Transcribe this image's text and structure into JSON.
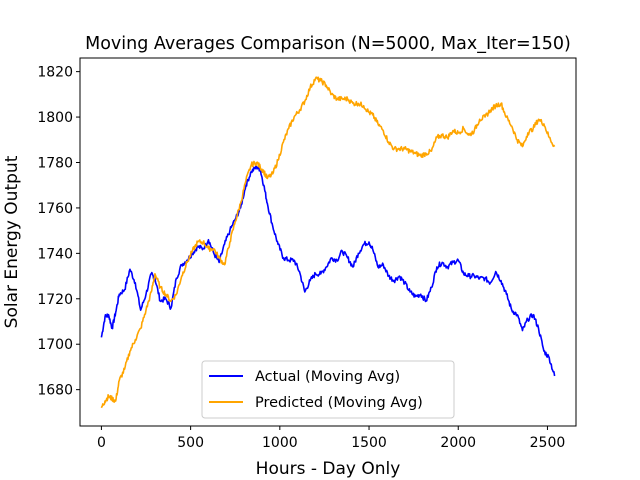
{
  "chart_data": {
    "type": "line",
    "title": "Moving Averages Comparison (N=5000, Max_Iter=150)",
    "xlabel": "Hours - Day Only",
    "ylabel": "Solar Energy Output",
    "xlim": [
      -120,
      2660
    ],
    "ylim": [
      1664,
      1826
    ],
    "xticks": [
      0,
      500,
      1000,
      1500,
      2000,
      2500
    ],
    "yticks": [
      1680,
      1700,
      1720,
      1740,
      1760,
      1780,
      1800,
      1820
    ],
    "grid": false,
    "legend_position": "lower-center",
    "series": [
      {
        "name": "Actual (Moving Avg)",
        "color": "#0000ff",
        "x": [
          0,
          20,
          40,
          60,
          80,
          100,
          130,
          160,
          190,
          220,
          250,
          280,
          300,
          330,
          360,
          390,
          420,
          450,
          480,
          510,
          540,
          570,
          600,
          630,
          660,
          690,
          720,
          750,
          780,
          810,
          840,
          870,
          890,
          910,
          930,
          960,
          990,
          1020,
          1050,
          1080,
          1110,
          1140,
          1170,
          1200,
          1230,
          1260,
          1290,
          1320,
          1350,
          1380,
          1410,
          1440,
          1470,
          1500,
          1520,
          1550,
          1580,
          1610,
          1640,
          1670,
          1700,
          1730,
          1760,
          1790,
          1820,
          1850,
          1880,
          1910,
          1940,
          1970,
          2000,
          2030,
          2060,
          2090,
          2120,
          2150,
          2180,
          2210,
          2240,
          2270,
          2300,
          2330,
          2360,
          2390,
          2420,
          2450,
          2480,
          2510,
          2540
        ],
        "y": [
          1703,
          1712,
          1713,
          1707,
          1714,
          1722,
          1724,
          1733,
          1727,
          1715,
          1722,
          1731,
          1729,
          1719,
          1720,
          1716,
          1729,
          1735,
          1737,
          1740,
          1743,
          1742,
          1746,
          1740,
          1736,
          1744,
          1750,
          1755,
          1760,
          1770,
          1776,
          1778,
          1777,
          1770,
          1762,
          1752,
          1744,
          1738,
          1737,
          1737,
          1732,
          1723,
          1728,
          1731,
          1731,
          1734,
          1738,
          1737,
          1741,
          1738,
          1734,
          1740,
          1744,
          1745,
          1742,
          1734,
          1735,
          1730,
          1728,
          1730,
          1727,
          1723,
          1721,
          1722,
          1719,
          1725,
          1734,
          1736,
          1734,
          1736,
          1737,
          1731,
          1730,
          1730,
          1729,
          1729,
          1727,
          1732,
          1728,
          1722,
          1715,
          1713,
          1706,
          1711,
          1713,
          1707,
          1697,
          1694,
          1686
        ]
      },
      {
        "name": "Predicted (Moving Avg)",
        "color": "#ffa500",
        "x": [
          0,
          20,
          40,
          60,
          80,
          100,
          130,
          160,
          190,
          220,
          250,
          280,
          300,
          330,
          360,
          390,
          420,
          450,
          480,
          510,
          540,
          570,
          600,
          630,
          660,
          690,
          720,
          750,
          780,
          810,
          840,
          870,
          890,
          910,
          930,
          960,
          990,
          1020,
          1050,
          1080,
          1110,
          1140,
          1170,
          1200,
          1230,
          1260,
          1290,
          1320,
          1350,
          1380,
          1410,
          1440,
          1470,
          1500,
          1520,
          1550,
          1580,
          1610,
          1640,
          1670,
          1700,
          1730,
          1760,
          1790,
          1820,
          1850,
          1880,
          1910,
          1940,
          1970,
          2000,
          2030,
          2060,
          2090,
          2120,
          2150,
          2180,
          2210,
          2240,
          2270,
          2300,
          2330,
          2360,
          2390,
          2420,
          2450,
          2480,
          2510,
          2540
        ],
        "y": [
          1672,
          1675,
          1677,
          1676,
          1675,
          1684,
          1689,
          1697,
          1702,
          1707,
          1715,
          1723,
          1731,
          1725,
          1722,
          1719,
          1722,
          1730,
          1736,
          1741,
          1745,
          1745,
          1742,
          1742,
          1738,
          1735,
          1745,
          1754,
          1762,
          1772,
          1779,
          1780,
          1778,
          1776,
          1773,
          1775,
          1781,
          1789,
          1795,
          1800,
          1803,
          1807,
          1813,
          1817,
          1816,
          1814,
          1810,
          1808,
          1808,
          1808,
          1806,
          1806,
          1805,
          1802,
          1801,
          1797,
          1794,
          1789,
          1786,
          1786,
          1786,
          1785,
          1784,
          1783,
          1784,
          1785,
          1791,
          1792,
          1791,
          1794,
          1793,
          1795,
          1792,
          1794,
          1799,
          1800,
          1803,
          1805,
          1806,
          1800,
          1796,
          1790,
          1787,
          1793,
          1795,
          1799,
          1797,
          1791,
          1787
        ]
      }
    ]
  }
}
